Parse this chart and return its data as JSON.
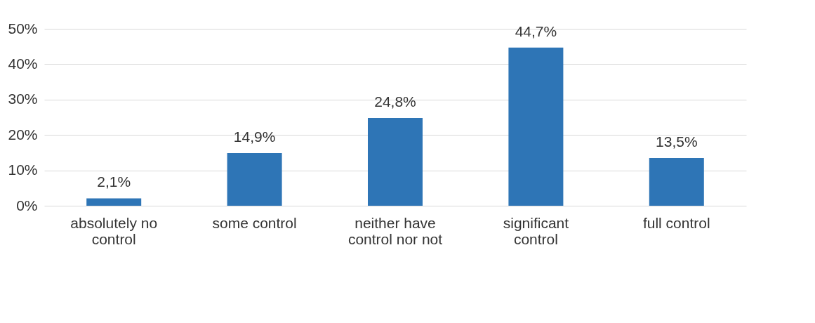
{
  "chart_data": {
    "type": "bar",
    "categories": [
      "absolutely no control",
      "some control",
      "neither have control nor not",
      "significant control",
      "full control"
    ],
    "values": [
      2.1,
      14.9,
      24.8,
      44.7,
      13.5
    ],
    "value_labels": [
      "2,1%",
      "14,9%",
      "24,8%",
      "44,7%",
      "13,5%"
    ],
    "color": "#2e75b6",
    "ylim": [
      0,
      50
    ],
    "yticks": [
      {
        "value": 0,
        "label": "0%"
      },
      {
        "value": 10,
        "label": "10%"
      },
      {
        "value": 20,
        "label": "20%"
      },
      {
        "value": 30,
        "label": "30%"
      },
      {
        "value": 40,
        "label": "40%"
      },
      {
        "value": 50,
        "label": "50%"
      }
    ],
    "grid": "y"
  }
}
